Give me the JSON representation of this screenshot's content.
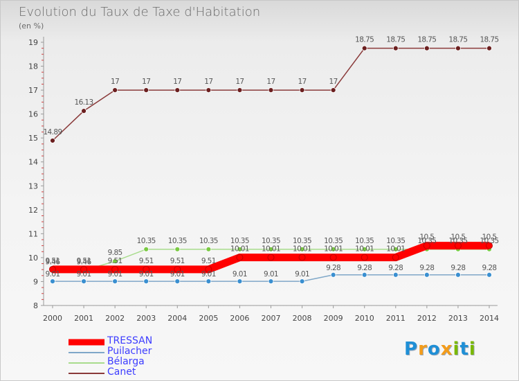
{
  "title": "Evolution du Taux de Taxe d'Habitation",
  "unit_label": "(en %)",
  "logo": {
    "letters": [
      {
        "ch": "P",
        "color": "#1f8fd6"
      },
      {
        "ch": "r",
        "color": "#f39c1b"
      },
      {
        "ch": "o",
        "color": "#1f8fd6"
      },
      {
        "ch": "x",
        "color": "#f39c1b"
      },
      {
        "ch": "i",
        "color": "#7ab800"
      },
      {
        "ch": "t",
        "color": "#1f8fd6"
      },
      {
        "ch": "i",
        "color": "#7ab800"
      }
    ]
  },
  "chart_data": {
    "type": "line",
    "title": "Evolution du Taux de Taxe d'Habitation",
    "ylabel": "(en %)",
    "xlabel": "",
    "ylim": [
      8,
      19
    ],
    "yticks": [
      8,
      9,
      10,
      11,
      12,
      13,
      14,
      15,
      16,
      17,
      18,
      19
    ],
    "categories": [
      "2000",
      "2001",
      "2002",
      "2003",
      "2004",
      "2005",
      "2006",
      "2007",
      "2008",
      "2009",
      "2010",
      "2011",
      "2012",
      "2013",
      "2014"
    ],
    "legend_position": "bottom-left",
    "series": [
      {
        "name": "TRESSAN",
        "color": "#ff0000",
        "marker": "#ff0000",
        "values": [
          9.51,
          9.51,
          9.51,
          9.51,
          9.51,
          9.51,
          10.01,
          10.01,
          10.01,
          10.01,
          10.01,
          10.01,
          10.5,
          10.5,
          10.5
        ],
        "labels": [
          "9.51",
          "9.51",
          "9.51",
          "9.51",
          "9.51",
          "9.51",
          "10.01",
          "10.01",
          "10.01",
          "10.01",
          "10.01",
          "10.01",
          "10.5",
          "10.5",
          "10.5"
        ]
      },
      {
        "name": "Puilacher",
        "color": "#7fa7c8",
        "marker": "#3a8fd0",
        "values": [
          9.01,
          9.01,
          9.01,
          9.01,
          9.01,
          9.01,
          9.01,
          9.01,
          9.01,
          9.28,
          9.28,
          9.28,
          9.28,
          9.28,
          9.28
        ],
        "labels": [
          "9.01",
          "9.01",
          "9.01",
          "9.01",
          "9.01",
          "9.01",
          "9.01",
          "9.01",
          "9.01",
          "9.28",
          "9.28",
          "9.28",
          "9.28",
          "9.28",
          "9.28"
        ]
      },
      {
        "name": "Bélarga",
        "color": "#a8dc8c",
        "marker": "#7ac943",
        "values": [
          9.46,
          9.46,
          9.85,
          10.35,
          10.35,
          10.35,
          10.35,
          10.35,
          10.35,
          10.35,
          10.35,
          10.35,
          10.35,
          10.35,
          10.35
        ],
        "labels": [
          "9.46",
          "9.46",
          "9.85",
          "10.35",
          "10.35",
          "10.35",
          "10.35",
          "10.35",
          "10.35",
          "10.35",
          "10.35",
          "10.35",
          "10.35",
          "10.35",
          "10.35"
        ]
      },
      {
        "name": "Canet",
        "color": "#8a3a3a",
        "marker": "#6b1f1f",
        "values": [
          14.89,
          16.13,
          17,
          17,
          17,
          17,
          17,
          17,
          17,
          17,
          18.75,
          18.75,
          18.75,
          18.75,
          18.75
        ],
        "labels": [
          "14.89",
          "16.13",
          "17",
          "17",
          "17",
          "17",
          "17",
          "17",
          "17",
          "17",
          "18.75",
          "18.75",
          "18.75",
          "18.75",
          "18.75"
        ]
      }
    ]
  }
}
